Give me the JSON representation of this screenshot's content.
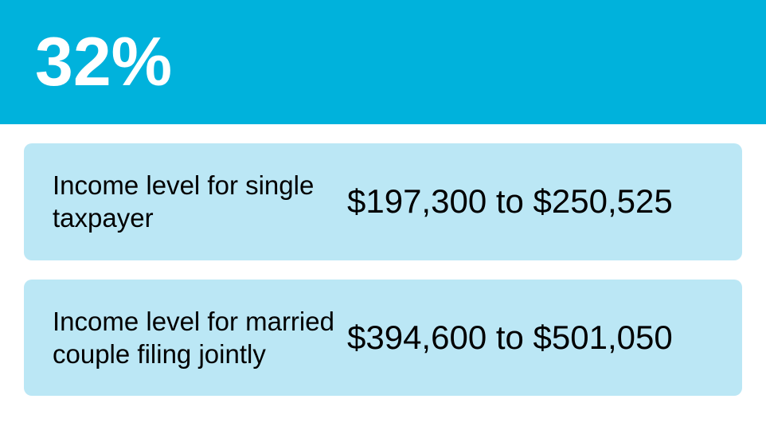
{
  "colors": {
    "header_bg": "#00b2dc",
    "header_text": "#ffffff",
    "row_bg": "#bbe7f5",
    "text": "#000000"
  },
  "rate": "32%",
  "rows": [
    {
      "label": "Income level for single taxpayer",
      "value": "$197,300 to $250,525"
    },
    {
      "label": "Income level for married couple filing jointly",
      "value": "$394,600 to $501,050"
    }
  ]
}
